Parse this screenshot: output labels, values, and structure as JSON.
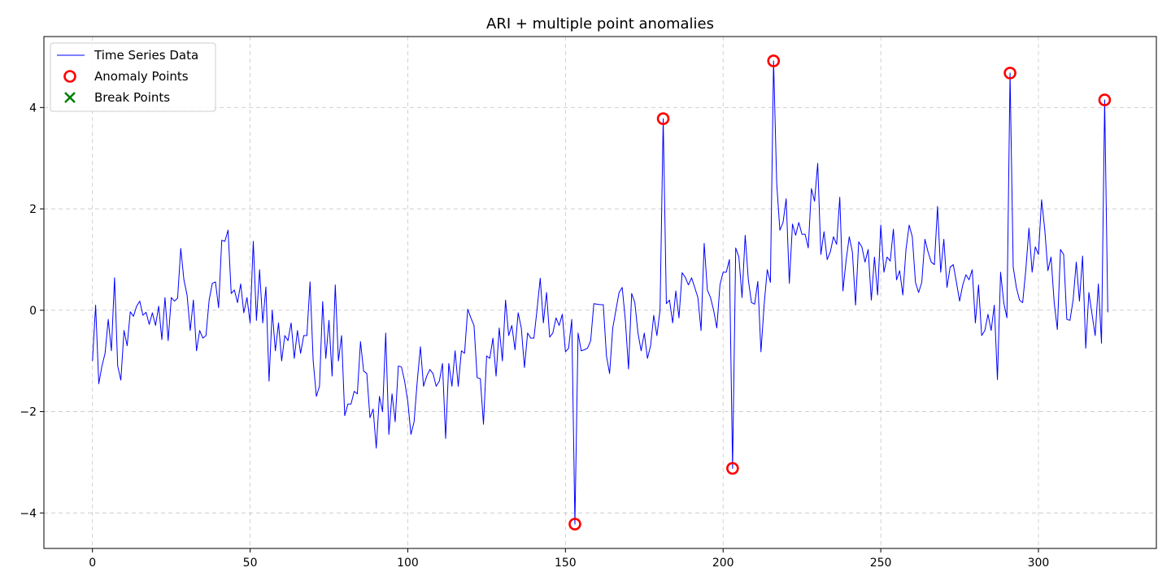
{
  "chart_data": {
    "type": "line",
    "title": "ARI + multiple point anomalies",
    "xlabel": "",
    "ylabel": "",
    "xlim": [
      -15.4,
      337.4
    ],
    "ylim": [
      -4.7,
      5.4
    ],
    "xticks": [
      0,
      50,
      100,
      150,
      200,
      250,
      300
    ],
    "yticks": [
      -4,
      -2,
      0,
      2,
      4
    ],
    "xtick_labels": [
      "0",
      "50",
      "100",
      "150",
      "200",
      "250",
      "300"
    ],
    "ytick_labels": [
      "−4",
      "−2",
      "0",
      "2",
      "4"
    ],
    "grid": true,
    "legend_position": "top-left",
    "legend": [
      {
        "label": "Time Series Data",
        "marker": "line",
        "color": "#0000ff"
      },
      {
        "label": "Anomaly Points",
        "marker": "circle",
        "color": "#ff0000"
      },
      {
        "label": "Break Points",
        "marker": "x",
        "color": "#008000"
      }
    ],
    "series": [
      {
        "name": "Time Series Data",
        "color": "#0000ff",
        "x_start": 0,
        "values": [
          -1.0,
          0.1,
          -1.45,
          -1.1,
          -0.85,
          -0.18,
          -0.8,
          0.64,
          -1.1,
          -1.38,
          -0.4,
          -0.7,
          -0.03,
          -0.12,
          0.08,
          0.18,
          -0.1,
          -0.04,
          -0.28,
          -0.05,
          -0.3,
          0.08,
          -0.58,
          0.25,
          -0.6,
          0.25,
          0.18,
          0.24,
          1.22,
          0.6,
          0.3,
          -0.4,
          0.2,
          -0.8,
          -0.4,
          -0.55,
          -0.5,
          0.2,
          0.53,
          0.56,
          0.05,
          1.38,
          1.36,
          1.58,
          0.33,
          0.4,
          0.15,
          0.52,
          -0.05,
          0.25,
          -0.25,
          1.36,
          -0.2,
          0.8,
          -0.25,
          0.46,
          -1.4,
          0.0,
          -0.8,
          -0.25,
          -1.0,
          -0.5,
          -0.6,
          -0.25,
          -0.95,
          -0.4,
          -0.85,
          -0.5,
          -0.5,
          0.56,
          -1.0,
          -1.7,
          -1.5,
          0.17,
          -0.95,
          -0.2,
          -1.3,
          0.5,
          -1.0,
          -0.5,
          -2.08,
          -1.85,
          -1.85,
          -1.6,
          -1.65,
          -0.62,
          -1.2,
          -1.25,
          -2.12,
          -1.95,
          -2.72,
          -1.7,
          -2.0,
          -0.45,
          -2.45,
          -1.65,
          -2.2,
          -1.1,
          -1.12,
          -1.4,
          -1.8,
          -2.45,
          -2.2,
          -1.4,
          -0.72,
          -1.5,
          -1.3,
          -1.17,
          -1.25,
          -1.5,
          -1.4,
          -1.05,
          -2.53,
          -1.05,
          -1.5,
          -0.8,
          -1.5,
          -0.8,
          -0.85,
          0.02,
          -0.15,
          -0.3,
          -1.33,
          -1.35,
          -2.25,
          -0.9,
          -0.95,
          -0.55,
          -1.3,
          -0.35,
          -1.0,
          0.2,
          -0.5,
          -0.3,
          -0.78,
          -0.05,
          -0.35,
          -1.13,
          -0.45,
          -0.55,
          -0.55,
          0.02,
          0.63,
          -0.25,
          0.35,
          -0.53,
          -0.45,
          -0.15,
          -0.3,
          -0.08,
          -0.82,
          -0.75,
          -0.18,
          -4.22,
          -0.45,
          -0.8,
          -0.78,
          -0.75,
          -0.6,
          0.13,
          0.12,
          0.11,
          0.11,
          -0.9,
          -1.25,
          -0.35,
          0.0,
          0.35,
          0.45,
          -0.2,
          -1.16,
          0.33,
          0.15,
          -0.45,
          -0.8,
          -0.45,
          -0.95,
          -0.7,
          -0.1,
          -0.5,
          0.0,
          3.78,
          0.13,
          0.2,
          -0.25,
          0.38,
          -0.15,
          0.74,
          0.65,
          0.5,
          0.64,
          0.45,
          0.25,
          -0.4,
          1.32,
          0.4,
          0.25,
          0.0,
          -0.35,
          0.5,
          0.75,
          0.75,
          1.0,
          -3.12,
          1.23,
          1.05,
          0.25,
          1.48,
          0.6,
          0.15,
          0.12,
          0.57,
          -0.82,
          0.1,
          0.8,
          0.55,
          4.92,
          2.5,
          1.58,
          1.73,
          2.2,
          0.53,
          1.7,
          1.48,
          1.73,
          1.5,
          1.5,
          1.23,
          2.4,
          2.15,
          2.9,
          1.1,
          1.55,
          1.0,
          1.15,
          1.45,
          1.3,
          2.23,
          0.38,
          0.98,
          1.45,
          1.15,
          0.1,
          1.35,
          1.25,
          0.95,
          1.2,
          0.2,
          1.05,
          0.3,
          1.68,
          0.75,
          1.05,
          0.97,
          1.6,
          0.6,
          0.78,
          0.3,
          1.2,
          1.68,
          1.45,
          0.55,
          0.35,
          0.55,
          1.4,
          1.15,
          0.95,
          0.9,
          2.05,
          0.75,
          1.4,
          0.45,
          0.85,
          0.9,
          0.55,
          0.18,
          0.5,
          0.7,
          0.6,
          0.8,
          -0.25,
          0.5,
          -0.5,
          -0.4,
          -0.08,
          -0.4,
          0.1,
          -1.37,
          0.75,
          0.15,
          -0.15,
          4.68,
          0.85,
          0.45,
          0.2,
          0.15,
          0.8,
          1.62,
          0.75,
          1.25,
          1.1,
          2.18,
          1.6,
          0.78,
          1.05,
          0.15,
          -0.38,
          1.2,
          1.1,
          -0.18,
          -0.2,
          0.2,
          0.95,
          0.18,
          1.07,
          -0.75,
          0.35,
          -0.08,
          -0.5,
          0.52,
          -0.65,
          4.15,
          -0.04
        ]
      },
      {
        "name": "Anomaly Points",
        "color": "#ff0000",
        "x": [
          153,
          181,
          203,
          216,
          291,
          321
        ],
        "y": [
          -4.22,
          3.78,
          -3.12,
          4.92,
          4.68,
          4.15
        ]
      },
      {
        "name": "Break Points",
        "color": "#008000",
        "x": [],
        "y": []
      }
    ]
  }
}
